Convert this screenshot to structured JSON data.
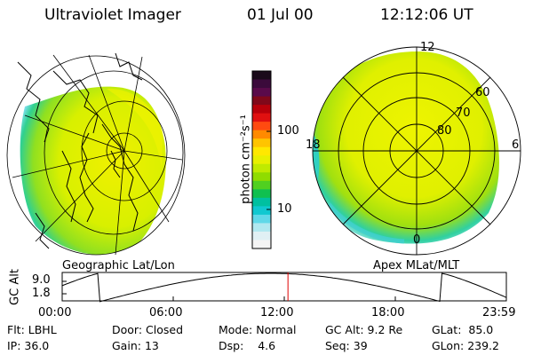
{
  "header": {
    "title": "Ultraviolet Imager",
    "date": "01 Jul 00",
    "time": "12:12:06 UT"
  },
  "colorbar": {
    "label": "photon cm⁻²s⁻¹",
    "ticks": [
      "100",
      "10"
    ],
    "colors": [
      "#1a0a1a",
      "#3b0a3b",
      "#5a0a4a",
      "#80081a",
      "#b8000a",
      "#e01010",
      "#ff4a10",
      "#ff8a00",
      "#ffc400",
      "#ffe800",
      "#e8f000",
      "#c0ea00",
      "#90dc00",
      "#50d020",
      "#10c050",
      "#00c0a0",
      "#10c8d0",
      "#60d8e8",
      "#b0e8f0",
      "#e0f0f4",
      "#f4f4f4"
    ]
  },
  "maps": {
    "left_label": "Geographic Lat/Lon",
    "right_label": "Apex MLat/MLT",
    "mlt_labels": {
      "top": "12",
      "left": "18",
      "right": "6",
      "bottom": "0"
    },
    "mlat_labels": [
      "60",
      "70",
      "80"
    ]
  },
  "altitude_plot": {
    "ylabel": "GC Alt",
    "y_ticks": [
      "9.0",
      "1.8"
    ],
    "x_ticks": [
      "00:00",
      "06:00",
      "12:00",
      "18:00",
      "23:59"
    ],
    "current_marker_hour": 12.2
  },
  "info": {
    "row1": [
      {
        "label": "Flt:",
        "value": "LBHL"
      },
      {
        "label": "Door:",
        "value": "Closed"
      },
      {
        "label": "Mode:",
        "value": "Normal"
      },
      {
        "label": "GC Alt:",
        "value": "9.2 Re"
      },
      {
        "label": "GLat:",
        "value": "85.0"
      }
    ],
    "row2": [
      {
        "label": "IP:",
        "value": "36.0"
      },
      {
        "label": "Gain:",
        "value": "13"
      },
      {
        "label": "Dsp:",
        "value": "4.6"
      },
      {
        "label": "Seq:",
        "value": "39"
      },
      {
        "label": "GLon:",
        "value": "239.2"
      }
    ]
  }
}
